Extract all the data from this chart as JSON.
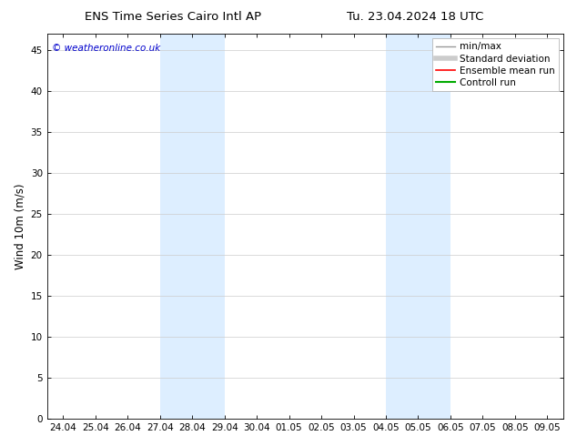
{
  "title_left": "ENS Time Series Cairo Intl AP",
  "title_right": "Tu. 23.04.2024 18 UTC",
  "ylabel": "Wind 10m (m/s)",
  "watermark": "© weatheronline.co.uk",
  "ylim": [
    0,
    47
  ],
  "yticks": [
    0,
    5,
    10,
    15,
    20,
    25,
    30,
    35,
    40,
    45
  ],
  "xtick_labels": [
    "24.04",
    "25.04",
    "26.04",
    "27.04",
    "28.04",
    "29.04",
    "30.04",
    "01.05",
    "02.05",
    "03.05",
    "04.05",
    "05.05",
    "06.05",
    "07.05",
    "08.05",
    "09.05"
  ],
  "shaded_regions": [
    {
      "xstart": 3,
      "xend": 5
    },
    {
      "xstart": 10,
      "xend": 12
    }
  ],
  "shaded_color": "#ddeeff",
  "background_color": "#ffffff",
  "plot_bg_color": "#ffffff",
  "legend_entries": [
    {
      "label": "min/max",
      "color": "#999999",
      "lw": 1.0
    },
    {
      "label": "Standard deviation",
      "color": "#cccccc",
      "lw": 4.0
    },
    {
      "label": "Ensemble mean run",
      "color": "#ff0000",
      "lw": 1.2
    },
    {
      "label": "Controll run",
      "color": "#00aa00",
      "lw": 1.5
    }
  ],
  "title_fontsize": 9.5,
  "tick_fontsize": 7.5,
  "watermark_color": "#0000cc",
  "watermark_fontsize": 7.5,
  "ylabel_fontsize": 8.5,
  "legend_fontsize": 7.5
}
